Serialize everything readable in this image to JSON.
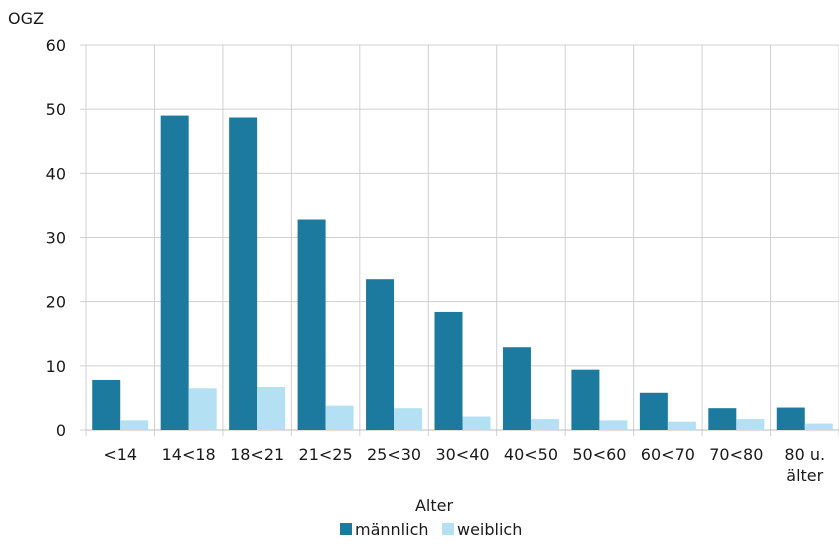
{
  "chart_data": {
    "type": "bar",
    "ylabel": "OGZ",
    "xlabel": "Alter",
    "ylim": [
      0,
      60
    ],
    "yticks": [
      0,
      10,
      20,
      30,
      40,
      50,
      60
    ],
    "grid": true,
    "legend_position": "bottom",
    "categories": [
      [
        "<14"
      ],
      [
        "14<18"
      ],
      [
        "18<21"
      ],
      [
        "21<25"
      ],
      [
        "25<30"
      ],
      [
        "30<40"
      ],
      [
        "40<50"
      ],
      [
        "50<60"
      ],
      [
        "60<70"
      ],
      [
        "70<80"
      ],
      [
        "80 u.",
        "älter"
      ]
    ],
    "series": [
      {
        "name": "männlich",
        "color": "#1b7a9e",
        "values": [
          7.8,
          49.0,
          48.7,
          32.8,
          23.5,
          18.4,
          12.9,
          9.4,
          5.8,
          3.4,
          3.5
        ]
      },
      {
        "name": "weiblich",
        "color": "#b3e0f2",
        "values": [
          1.5,
          6.5,
          6.7,
          3.8,
          3.4,
          2.1,
          1.7,
          1.5,
          1.3,
          1.7,
          1.0
        ]
      }
    ]
  }
}
